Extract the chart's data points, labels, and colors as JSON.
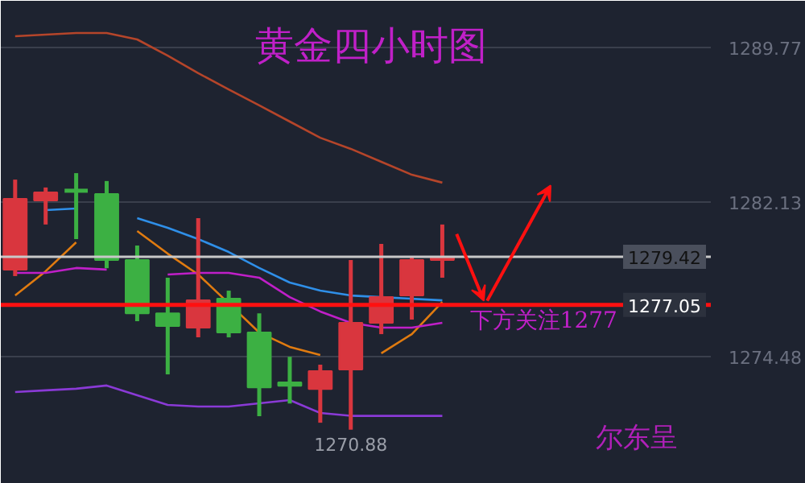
{
  "chart_data": {
    "type": "candlestick",
    "title": "黄金四小时图",
    "categories": [
      null,
      null,
      null,
      null,
      null,
      null,
      null,
      null,
      null,
      null,
      null,
      null,
      null,
      null,
      null
    ],
    "ohlc": [
      [
        1278.79,
        1283.24,
        1278.47,
        1282.29
      ],
      [
        1282.21,
        1282.85,
        1281.02,
        1282.61
      ],
      [
        1282.73,
        1283.56,
        1280.3,
        1282.65
      ],
      [
        1282.53,
        1283.17,
        1278.86,
        1279.26
      ],
      [
        1279.26,
        1279.98,
        1276.24,
        1276.63
      ],
      [
        1276.63,
        1278.39,
        1273.61,
        1276.0
      ],
      [
        1275.92,
        1281.33,
        1275.44,
        1277.27
      ],
      [
        1277.35,
        1277.75,
        1275.44,
        1275.68
      ],
      [
        1275.68,
        1276.63,
        1271.54,
        1272.97
      ],
      [
        1273.21,
        1274.48,
        1272.17,
        1273.05
      ],
      [
        1272.89,
        1274.09,
        1271.22,
        1273.77
      ],
      [
        1273.85,
        1279.26,
        1270.88,
        1276.16
      ],
      [
        1276.16,
        1280.06,
        1275.6,
        1277.43
      ],
      [
        1277.51,
        1279.42,
        1276.32,
        1279.26
      ],
      [
        1279.26,
        1281.02,
        1278.39,
        1279.42
      ]
    ],
    "colors": [
      "#d9363e",
      "#d9363e",
      "#3cb043",
      "#3cb043",
      "#3cb043",
      "#3cb043",
      "#d9363e",
      "#3cb043",
      "#3cb043",
      "#3cb043",
      "#d9363e",
      "#d9363e",
      "#d9363e",
      "#d9363e",
      "#d9363e"
    ],
    "series": [
      {
        "type": "line",
        "color": "#b5452a",
        "values": [
          1290.33,
          1290.41,
          1290.49,
          1290.49,
          1290.17,
          1289.37,
          1288.5,
          1287.7,
          1286.91,
          1286.11,
          1285.31,
          1284.76,
          1284.12,
          1283.48,
          1283.09
        ]
      },
      {
        "type": "line",
        "color": "#2f8fe8",
        "values": [
          null,
          1281.73,
          1281.81,
          null,
          1281.33,
          1280.86,
          1280.3,
          1279.66,
          1278.87,
          1278.15,
          1277.75,
          1277.51,
          1277.43,
          1277.35,
          1277.27
        ]
      },
      {
        "type": "line",
        "color": "#e07b10",
        "values": [
          1277.51,
          1278.71,
          1280.14,
          null,
          1280.7,
          1279.58,
          1278.55,
          1277.12,
          1275.68,
          1274.97,
          1274.57,
          null,
          1274.65,
          1275.6,
          1277.19
        ]
      },
      {
        "type": "line",
        "color": "#c01fc8",
        "values": [
          1278.63,
          1278.63,
          1278.87,
          1278.79,
          null,
          1278.55,
          1278.63,
          1278.63,
          1278.39,
          1277.43,
          1276.72,
          1276.16,
          1275.92,
          1275.92,
          1276.16
        ]
      },
      {
        "type": "line",
        "color": "#8a3ad6",
        "values": [
          1272.74,
          1272.82,
          1272.9,
          1273.06,
          1272.58,
          1272.1,
          1272.02,
          1272.02,
          1272.18,
          1272.34,
          1271.7,
          1271.56,
          1271.56,
          1271.56,
          1271.56
        ]
      }
    ],
    "ylim": [
      1268.2,
      1292.08
    ],
    "yticks": [
      1274.48,
      1282.13,
      1289.77
    ],
    "grid": "y",
    "ref_lines": [
      {
        "axis": "y",
        "value": 1279.42,
        "label": "1279.42",
        "color": "#c8c8c8"
      },
      {
        "axis": "y",
        "value": 1277.05,
        "label": "1277.05",
        "color": "#ff1010"
      }
    ],
    "annotations": [
      "1270.88",
      "下方关注1277",
      "尔东呈"
    ]
  }
}
